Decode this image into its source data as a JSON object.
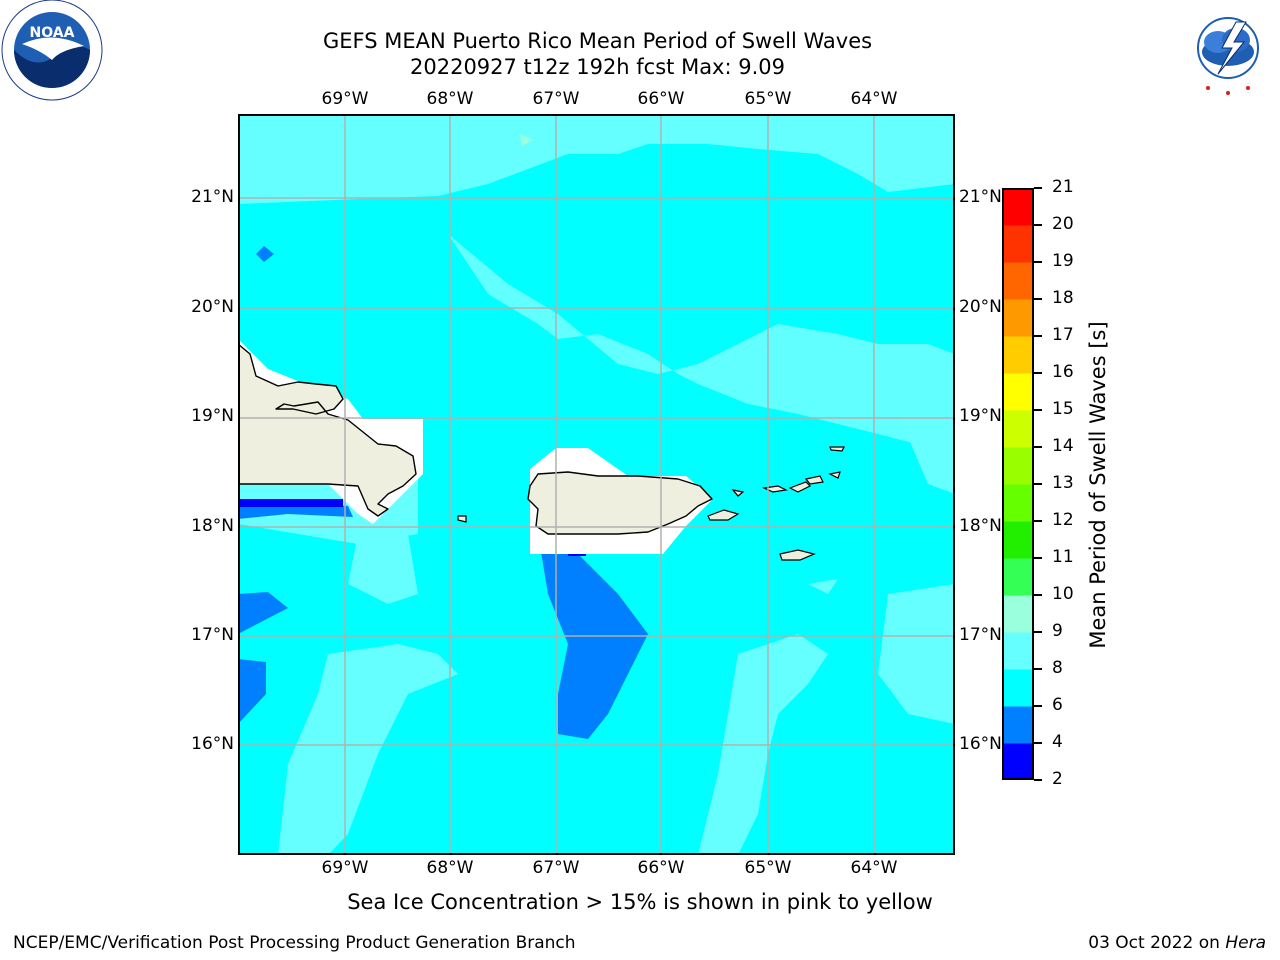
{
  "title": {
    "line1": "GEFS MEAN Puerto Rico Mean Period of Swell Waves",
    "line2": "20220927 t12z 192h fcst   Max: 9.09"
  },
  "logos": {
    "left": "NOAA",
    "left_ring": "NATIONAL OCEANIC AND ATMOSPHERIC ADMINISTRATION · U.S. DEPARTMENT OF COMMERCE",
    "right_ring": "NATIONAL WEATHER SERVICE"
  },
  "axes": {
    "lon_labels": [
      "69°W",
      "68°W",
      "67°W",
      "66°W",
      "65°W",
      "64°W"
    ],
    "lat_labels": [
      "21°N",
      "20°N",
      "19°N",
      "18°N",
      "17°N",
      "16°N"
    ]
  },
  "colorbar": {
    "label": "Mean Period of Swell Waves [s]",
    "ticks": [
      "2",
      "4",
      "6",
      "8",
      "9",
      "10",
      "11",
      "12",
      "13",
      "14",
      "15",
      "16",
      "17",
      "18",
      "19",
      "20",
      "21"
    ],
    "colors": [
      "#0000ff",
      "#0080ff",
      "#00ffff",
      "#66ffff",
      "#99ffdd",
      "#33ff55",
      "#22ee00",
      "#66ff00",
      "#99ff00",
      "#ccff00",
      "#ffff00",
      "#ffcc00",
      "#ff9900",
      "#ff6600",
      "#ff3300",
      "#ff0000"
    ]
  },
  "map_colors": {
    "c4": "#0000ff",
    "c6": "#0080ff",
    "c8": "#00ffff",
    "c9": "#66ffff",
    "c10": "#99ffdd",
    "land": "#efefdf",
    "nodata": "#ffffff"
  },
  "caption": "Sea Ice Concentration > 15% is shown in pink to yellow",
  "footer": {
    "left": "NCEP/EMC/Verification Post Processing Product Generation Branch",
    "date": "03 Oct 2022 on ",
    "machine": "Hera"
  }
}
